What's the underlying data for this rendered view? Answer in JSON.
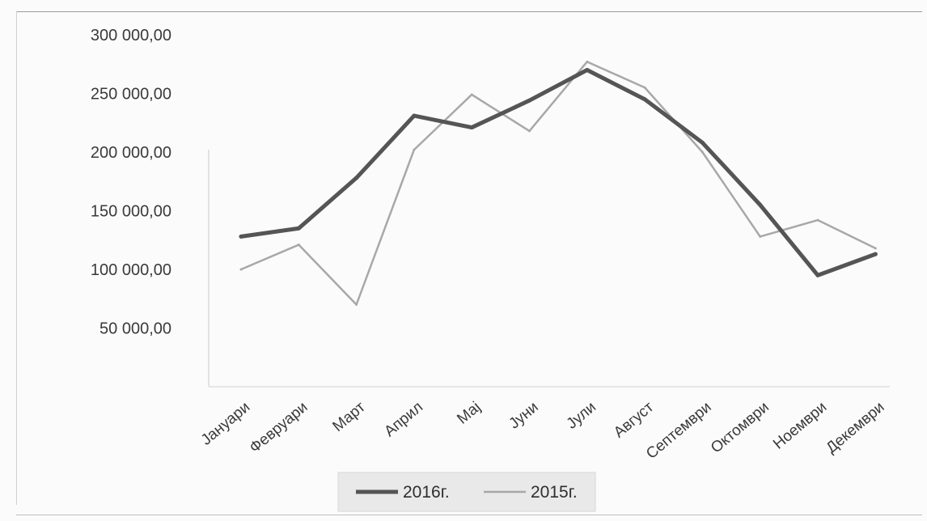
{
  "chart_data": {
    "type": "line",
    "title": "",
    "xlabel": "",
    "ylabel": "",
    "ylim": [
      0,
      300000
    ],
    "y_ticks": [
      {
        "value": 50000,
        "label": "50 000,00"
      },
      {
        "value": 100000,
        "label": "100 000,00"
      },
      {
        "value": 150000,
        "label": "150 000,00"
      },
      {
        "value": 200000,
        "label": "200 000,00"
      },
      {
        "value": 250000,
        "label": "250 000,00"
      },
      {
        "value": 300000,
        "label": "300 000,00"
      }
    ],
    "categories": [
      "Јануари",
      "Февруари",
      "Март",
      "Април",
      "Мај",
      "Јуни",
      "Јули",
      "Август",
      "Септември",
      "Октомври",
      "Ноември",
      "Декември"
    ],
    "series": [
      {
        "name": "2016г.",
        "color": "#555555",
        "values": [
          128000,
          135000,
          178000,
          231000,
          221000,
          244000,
          270000,
          245000,
          208000,
          155000,
          95000,
          113000
        ]
      },
      {
        "name": "2015г.",
        "color": "#a8a8a8",
        "values": [
          100000,
          121000,
          70000,
          202000,
          249000,
          218000,
          277000,
          255000,
          200000,
          128000,
          142000,
          118000
        ]
      }
    ],
    "grid": false,
    "legend_position": "bottom"
  }
}
